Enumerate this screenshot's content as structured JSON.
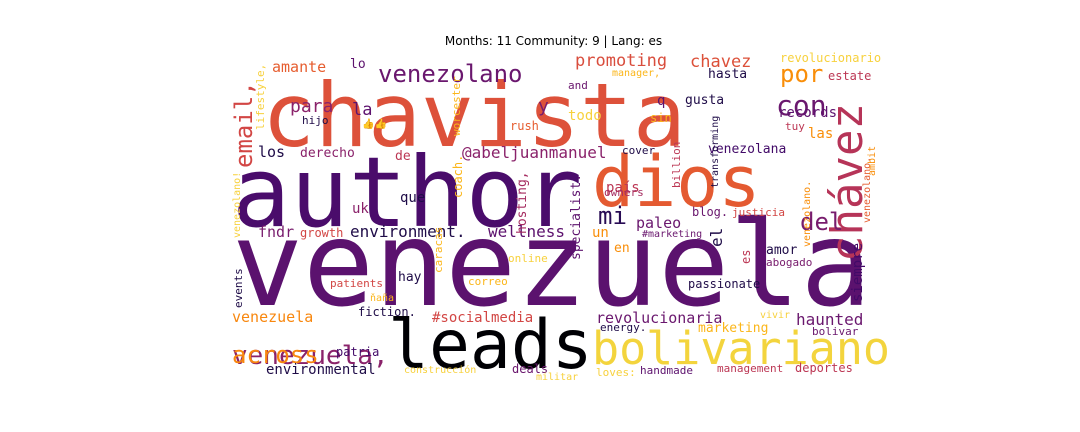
{
  "chart_data": {
    "type": "wordcloud",
    "title": "Months: 11 Community: 9 | Lang: es",
    "colormap": "inferno",
    "words": [
      {
        "text": "venezuela",
        "color": "#5b126e"
      },
      {
        "text": "author",
        "color": "#4a0c6b"
      },
      {
        "text": "chavista",
        "color": "#dd513a"
      },
      {
        "text": "dios",
        "color": "#e45a31"
      },
      {
        "text": "leads",
        "color": "#000004"
      },
      {
        "text": "bolivariano",
        "color": "#f3d43d"
      },
      {
        "text": "chávez",
        "color": "#b63458"
      },
      {
        "text": "venezolano",
        "color": "#6a176e"
      },
      {
        "text": "con",
        "color": "#6a176e"
      },
      {
        "text": "por",
        "color": "#f98e09"
      },
      {
        "text": "email,",
        "color": "#d24644"
      },
      {
        "text": "venezuela,",
        "color": "#8a226a"
      },
      {
        "text": "across",
        "color": "#f8870e"
      },
      {
        "text": "del",
        "color": "#781c6d"
      },
      {
        "text": "mi",
        "color": "#280b54"
      },
      {
        "text": "promoting",
        "color": "#d94d3d"
      },
      {
        "text": "chavez",
        "color": "#dc5039"
      },
      {
        "text": "amante",
        "color": "#e65d2f"
      },
      {
        "text": "para",
        "color": "#8a226a"
      },
      {
        "text": "la",
        "color": "#5d126e"
      },
      {
        "text": "y",
        "color": "#781c6d"
      },
      {
        "text": "todo",
        "color": "#f7d13d"
      },
      {
        "text": "hasta",
        "color": "#1f0c48"
      },
      {
        "text": "records",
        "color": "#5d126e"
      },
      {
        "text": "las",
        "color": "#f98e09"
      },
      {
        "text": "gusta",
        "color": "#1f0c48"
      },
      {
        "text": "q",
        "color": "#5d126e"
      },
      {
        "text": "lo",
        "color": "#5d126e"
      },
      {
        "text": "estate",
        "color": "#bc3754"
      },
      {
        "text": "@abeljuanmanuel",
        "color": "#8a226a"
      },
      {
        "text": "los",
        "color": "#1f0c48"
      },
      {
        "text": "derecho",
        "color": "#8a226a"
      },
      {
        "text": "de",
        "color": "#bc3754"
      },
      {
        "text": "venezolana",
        "color": "#420a68"
      },
      {
        "text": "que",
        "color": "#1f0c48"
      },
      {
        "text": "environment.",
        "color": "#1f0c48"
      },
      {
        "text": "wellness",
        "color": "#5d126e"
      },
      {
        "text": "paleo",
        "color": "#6a176e"
      },
      {
        "text": "fndr",
        "color": "#781c6d"
      },
      {
        "text": "growth",
        "color": "#d24644"
      },
      {
        "text": "un",
        "color": "#f98e09"
      },
      {
        "text": "país",
        "color": "#bc3754"
      },
      {
        "text": "uk",
        "color": "#8a226a"
      },
      {
        "text": "blog.",
        "color": "#6a176e"
      },
      {
        "text": "el",
        "color": "#1f0c48"
      },
      {
        "text": "en",
        "color": "#f98e09"
      },
      {
        "text": "es",
        "color": "#bc3754"
      },
      {
        "text": "amor",
        "color": "#1f0c48"
      },
      {
        "text": "abogado",
        "color": "#781c6d"
      },
      {
        "text": "siempre",
        "color": "#420a68"
      },
      {
        "text": "hay",
        "color": "#1f0c48"
      },
      {
        "text": "passionate",
        "color": "#1f0c48"
      },
      {
        "text": "venezuela",
        "color": "#f8870e"
      },
      {
        "text": "patients",
        "color": "#d24644"
      },
      {
        "text": "#socialmedia",
        "color": "#d24644"
      },
      {
        "text": "revolucionaria",
        "color": "#6a176e"
      },
      {
        "text": "haunted",
        "color": "#6a176e"
      },
      {
        "text": "marketing",
        "color": "#fbb61a"
      },
      {
        "text": "environmental",
        "color": "#1f0c48"
      },
      {
        "text": "patria",
        "color": "#420a68"
      },
      {
        "text": "deals",
        "color": "#6a176e"
      },
      {
        "text": "loves:",
        "color": "#f7d13d"
      },
      {
        "text": "handmade",
        "color": "#5d126e"
      },
      {
        "text": "management",
        "color": "#bc3754"
      },
      {
        "text": "deportes",
        "color": "#bc3754"
      },
      {
        "text": "fiction.",
        "color": "#1f0c48"
      },
      {
        "text": "energy.",
        "color": "#1f0c48"
      },
      {
        "text": "bolivar",
        "color": "#6a176e"
      },
      {
        "text": "cover",
        "color": "#1f0c48"
      },
      {
        "text": "hijo",
        "color": "#1f0c48"
      },
      {
        "text": "rush",
        "color": "#e65d2f"
      },
      {
        "text": "sin",
        "color": "#fbb61a"
      },
      {
        "text": "tuy",
        "color": "#bc3754"
      },
      {
        "text": "and",
        "color": "#6a176e"
      },
      {
        "text": "manager,",
        "color": "#fbb61a"
      },
      {
        "text": "revolucionario",
        "color": "#f7d13d"
      },
      {
        "text": "lifestyle,",
        "color": "#f7d13d"
      },
      {
        "text": "worcester",
        "color": "#fbb61a"
      },
      {
        "text": "transforming",
        "color": "#1f0c48"
      },
      {
        "text": "billion",
        "color": "#bc3754"
      },
      {
        "text": "owners",
        "color": "#a52c60"
      },
      {
        "text": "justicia",
        "color": "#d24644"
      },
      {
        "text": "#marketing",
        "color": "#6a176e"
      },
      {
        "text": "coach.",
        "color": "#fbb61a"
      },
      {
        "text": "hosting,",
        "color": "#a52c60"
      },
      {
        "text": "venezolano.",
        "color": "#f98e09"
      },
      {
        "text": "specialist.",
        "color": "#5d126e"
      },
      {
        "text": "venezolano.",
        "color": "#e65d2f"
      },
      {
        "text": "ambit",
        "color": "#f98e09"
      },
      {
        "text": "caracas",
        "color": "#fbb61a"
      },
      {
        "text": "online",
        "color": "#f7d13d"
      },
      {
        "text": "correo",
        "color": "#fbb61a"
      },
      {
        "text": "events",
        "color": "#1f0c48"
      },
      {
        "text": "venezolano!",
        "color": "#f7d13d"
      },
      {
        "text": "vivir",
        "color": "#f7d13d"
      },
      {
        "text": "ňaña",
        "color": "#fbb61a"
      },
      {
        "text": "militar",
        "color": "#f7d13d"
      },
      {
        "text": "construcción",
        "color": "#f7d13d"
      },
      {
        "text": "👍👍",
        "color": "#5d126e"
      }
    ]
  }
}
